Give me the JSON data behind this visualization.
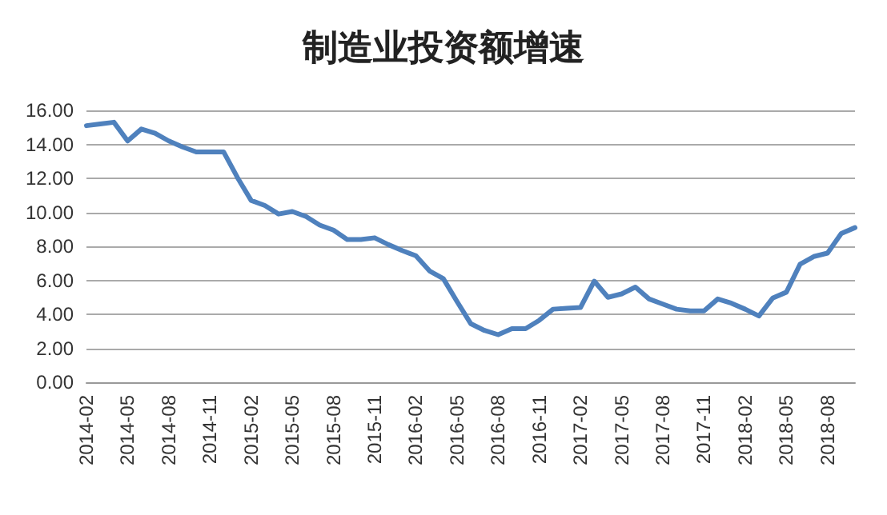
{
  "chart_data": {
    "type": "line",
    "title": "制造业投资额增速",
    "categories": [
      "2014-02",
      null,
      null,
      "2014-05",
      null,
      null,
      "2014-08",
      null,
      null,
      "2014-11",
      null,
      null,
      "2015-02",
      null,
      null,
      "2015-05",
      null,
      null,
      "2015-08",
      null,
      null,
      "2015-11",
      null,
      null,
      "2016-02",
      null,
      null,
      "2016-05",
      null,
      null,
      "2016-08",
      null,
      null,
      "2016-11",
      null,
      null,
      "2017-02",
      null,
      null,
      "2017-05",
      null,
      null,
      "2017-08",
      null,
      null,
      "2017-11",
      null,
      null,
      "2018-02",
      null,
      null,
      "2018-05",
      null,
      null,
      "2018-08",
      null,
      null
    ],
    "series": [
      {
        "color": "#4f81bd",
        "values": [
          15.1,
          15.2,
          15.3,
          14.2,
          14.9,
          14.65,
          14.2,
          13.85,
          13.55,
          13.55,
          13.55,
          12.05,
          10.7,
          10.4,
          9.9,
          10.05,
          9.75,
          9.25,
          8.95,
          8.4,
          8.4,
          8.5,
          8.1,
          7.75,
          7.45,
          6.55,
          6.1,
          4.75,
          3.45,
          3.05,
          2.8,
          3.15,
          3.15,
          3.65,
          4.3,
          4.35,
          4.4,
          5.95,
          5.0,
          5.2,
          5.6,
          4.9,
          4.6,
          4.3,
          4.2,
          4.2,
          4.9,
          4.65,
          4.3,
          3.9,
          4.95,
          5.3,
          6.95,
          7.4,
          7.6,
          8.75,
          9.1
        ]
      }
    ],
    "ylim": [
      0,
      16
    ],
    "yticks": [
      {
        "value": 0,
        "label": "0.00"
      },
      {
        "value": 2,
        "label": "2.00"
      },
      {
        "value": 4,
        "label": "4.00"
      },
      {
        "value": 6,
        "label": "6.00"
      },
      {
        "value": 8,
        "label": "8.00"
      },
      {
        "value": 10,
        "label": "10.00"
      },
      {
        "value": 12,
        "label": "12.00"
      },
      {
        "value": 14,
        "label": "14.00"
      },
      {
        "value": 16,
        "label": "16.00"
      }
    ],
    "grid": "y",
    "marker": "none",
    "line_style": "solid"
  }
}
